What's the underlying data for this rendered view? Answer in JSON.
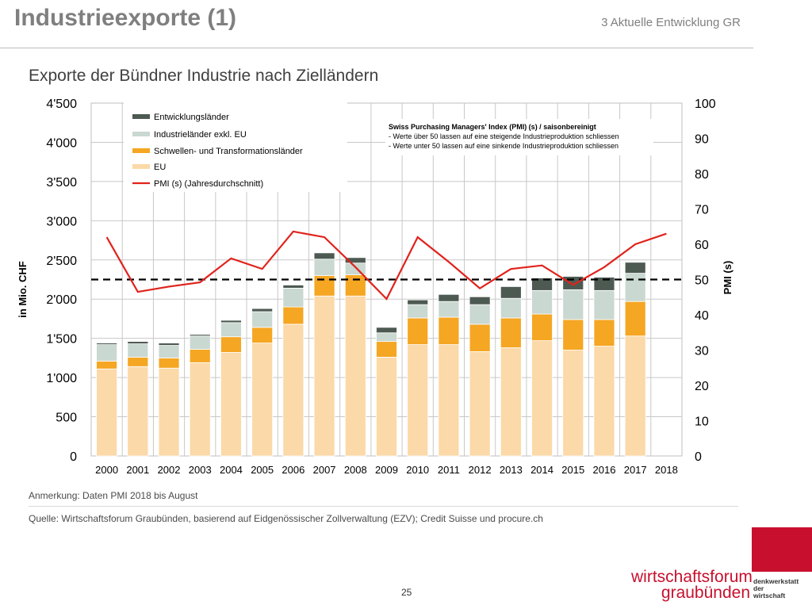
{
  "header": {
    "title": "Industrieexporte (1)",
    "section": "3 Aktuelle Entwicklung GR"
  },
  "colors": {
    "eu": "#fbd9a8",
    "schwellen": "#f5a623",
    "industrie": "#c9d8d1",
    "entwicklung": "#4d5a52",
    "pmi": "#e0231c",
    "threshold": "#000000"
  },
  "chart_data": {
    "type": "bar",
    "title": "Exporte der Bündner Industrie nach Zielländern",
    "ylabel": "in Mio. CHF",
    "y2label": "PMI (s)",
    "ylim": [
      0,
      4500
    ],
    "y2lim": [
      0,
      100
    ],
    "y_ticks": [
      "0",
      "500",
      "1'000",
      "1'500",
      "2'000",
      "2'500",
      "3'000",
      "3'500",
      "4'000",
      "4'500"
    ],
    "y2_ticks": [
      "0",
      "10",
      "20",
      "30",
      "40",
      "50",
      "60",
      "70",
      "80",
      "90",
      "100"
    ],
    "categories": [
      "2000",
      "2001",
      "2002",
      "2003",
      "2004",
      "2005",
      "2006",
      "2007",
      "2008",
      "2009",
      "2010",
      "2011",
      "2012",
      "2013",
      "2014",
      "2015",
      "2016",
      "2017",
      "2018"
    ],
    "series": [
      {
        "name": "EU",
        "values": [
          1110,
          1140,
          1120,
          1190,
          1320,
          1440,
          1680,
          2040,
          2040,
          1260,
          1420,
          1420,
          1330,
          1380,
          1470,
          1350,
          1400,
          1530,
          null
        ]
      },
      {
        "name": "Schwellen- und Transformationsländer",
        "values": [
          100,
          120,
          130,
          170,
          200,
          200,
          220,
          260,
          270,
          200,
          340,
          350,
          350,
          380,
          340,
          390,
          340,
          440,
          null
        ]
      },
      {
        "name": "Industrieländer exkl. EU",
        "values": [
          210,
          170,
          160,
          170,
          180,
          200,
          240,
          210,
          150,
          110,
          170,
          200,
          250,
          250,
          300,
          380,
          370,
          360,
          null
        ]
      },
      {
        "name": "Entwicklungsländer",
        "values": [
          20,
          30,
          30,
          20,
          30,
          40,
          40,
          80,
          70,
          70,
          60,
          90,
          100,
          150,
          160,
          170,
          170,
          140,
          null
        ]
      }
    ],
    "pmi": {
      "name": "PMI (s) (Jahresdurchschnitt)",
      "values": [
        62,
        46.5,
        48,
        49.2,
        56,
        53,
        63.6,
        62,
        53.5,
        44.5,
        62,
        55,
        47.5,
        53,
        54,
        48.5,
        53.5,
        60,
        63
      ]
    },
    "threshold": 50,
    "info_box": {
      "title": "Swiss Purchasing Managers' Index (PMI) (s) / saisonbereinigt",
      "line1": "- Werte über 50 lassen auf eine steigende Industrieproduktion schliessen",
      "line2": "- Werte unter 50 lassen auf eine sinkende Industrieproduktion schliessen"
    },
    "legend_position": "top-left"
  },
  "notes": {
    "anmerkung": "Anmerkung: Daten PMI 2018 bis August",
    "quelle": "Quelle: Wirtschaftsforum Graubünden, basierend auf Eidgenössischer Zollverwaltung (EZV); Credit Suisse und procure.ch"
  },
  "footer": {
    "page_number": "25",
    "brand_line1": "wirtschaftsforum",
    "brand_line2": "graubünden",
    "tagline1": "denkwerkstatt",
    "tagline2": "der",
    "tagline3": "wirtschaft"
  }
}
